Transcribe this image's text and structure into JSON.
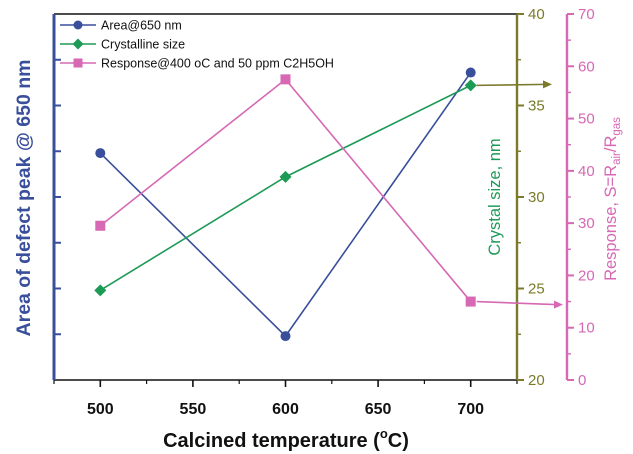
{
  "chart_data": {
    "type": "line",
    "xlabel_main": "Calcined temperature (",
    "xlabel_sup": "o",
    "xlabel_end": "C)",
    "x": [
      500,
      600,
      700
    ],
    "xlim": [
      475,
      725
    ],
    "xticks": [
      500,
      550,
      600,
      650,
      700
    ],
    "grid": false,
    "legend_position": "top-left",
    "axes": {
      "left": {
        "label": "Area of defect peak @ 650 nm",
        "color": "#3a4f9c",
        "tick_labels_shown": false
      },
      "right1": {
        "label": "Crystal size, nm",
        "color": "#7a7a2a",
        "label_color": "#1e9a57",
        "ylim": [
          20,
          40
        ],
        "ticks": [
          20,
          25,
          30,
          35,
          40
        ]
      },
      "right2": {
        "label_prefix": "Response, S=R",
        "label_sub1": "air",
        "label_mid": "/R",
        "label_sub2": "gas",
        "color": "#d668b4",
        "ylim": [
          0,
          70
        ],
        "ticks": [
          0,
          10,
          20,
          30,
          40,
          50,
          60,
          70
        ]
      }
    },
    "series": [
      {
        "name": "Area@650 nm",
        "axis": "left",
        "color": "#3a4f9c",
        "marker": "circle",
        "values_relative": [
          0.62,
          0.12,
          0.84
        ]
      },
      {
        "name": "Crystalline size",
        "axis": "right1",
        "color": "#1e9a57",
        "marker": "diamond",
        "values": [
          24.9,
          31.1,
          36.1
        ]
      },
      {
        "name": "Response@400 oC and 50 ppm C2H5OH",
        "axis": "right2",
        "color": "#d668b4",
        "marker": "square",
        "values": [
          29.5,
          57.5,
          15.0
        ]
      }
    ]
  }
}
